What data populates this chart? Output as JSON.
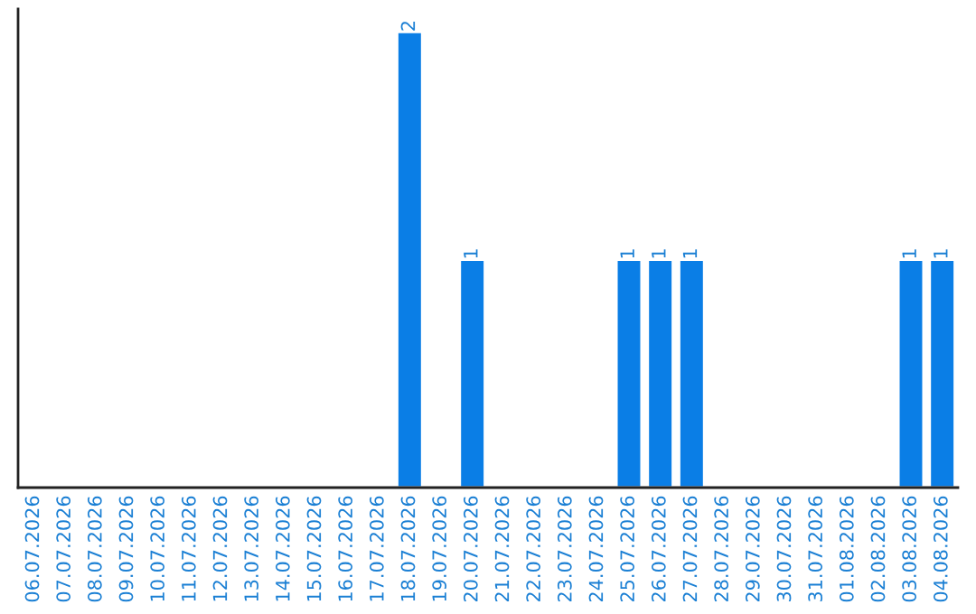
{
  "chart_data": {
    "type": "bar",
    "categories": [
      "06.07.2026",
      "07.07.2026",
      "08.07.2026",
      "09.07.2026",
      "10.07.2026",
      "11.07.2026",
      "12.07.2026",
      "13.07.2026",
      "14.07.2026",
      "15.07.2026",
      "16.07.2026",
      "17.07.2026",
      "18.07.2026",
      "19.07.2026",
      "20.07.2026",
      "21.07.2026",
      "22.07.2026",
      "23.07.2026",
      "24.07.2026",
      "25.07.2026",
      "26.07.2026",
      "27.07.2026",
      "28.07.2026",
      "29.07.2026",
      "30.07.2026",
      "31.07.2026",
      "01.08.2026",
      "02.08.2026",
      "03.08.2026",
      "04.08.2026"
    ],
    "values": [
      null,
      null,
      null,
      null,
      null,
      null,
      null,
      null,
      null,
      null,
      null,
      null,
      2,
      null,
      1,
      null,
      null,
      null,
      null,
      1,
      1,
      1,
      null,
      null,
      null,
      null,
      null,
      null,
      1,
      1
    ],
    "data_labels": true,
    "color": "#0a7ee6",
    "ylim": [
      0,
      2.1
    ],
    "tick_labels": "x",
    "grid": false,
    "legend": false
  }
}
